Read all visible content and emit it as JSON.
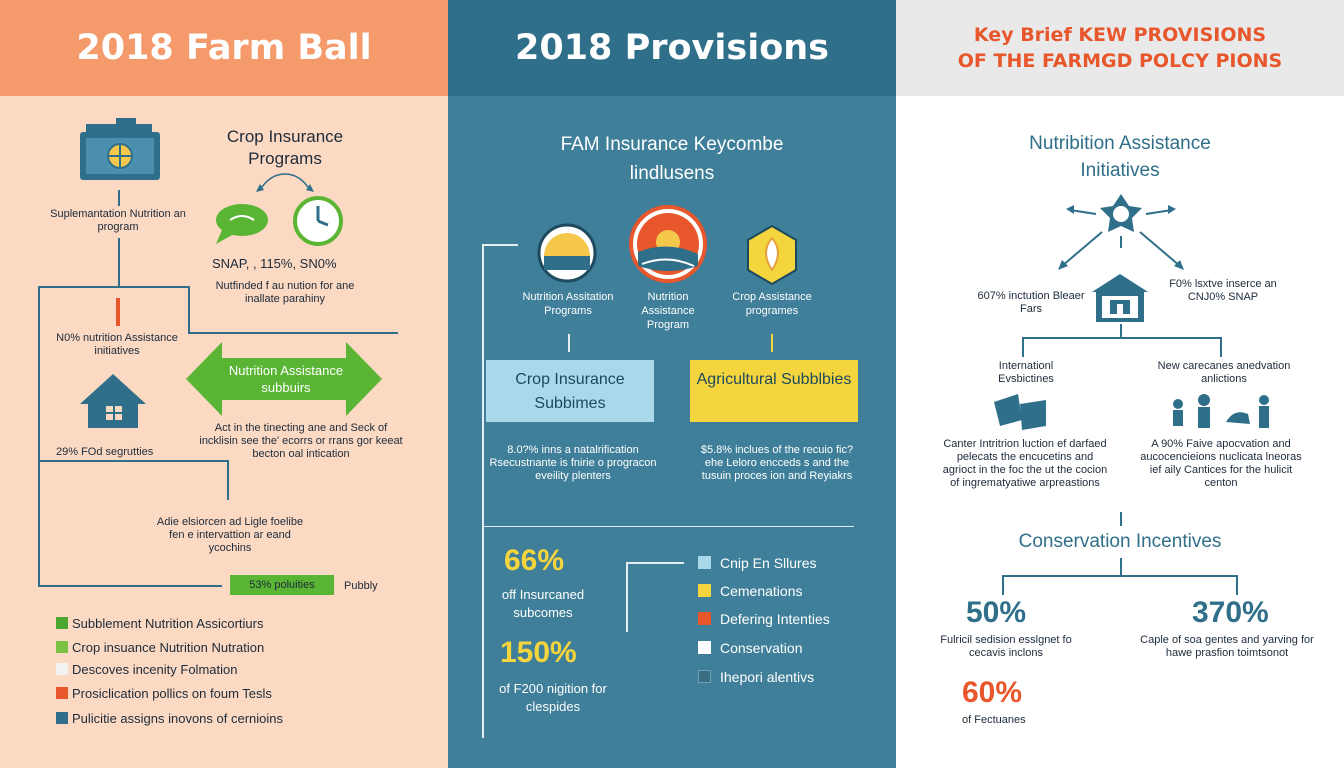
{
  "panel1": {
    "title": "2018 Farm Ball",
    "crop_title": "Crop Insurance Programs",
    "snap_line": "SNAP, ,   115%, SN0%",
    "funded_text": "Nutfinded f au nution for ane inallate parahiny",
    "supplemental": "Suplemantation Nutrition an program",
    "nutrition_pct": "N0% nutrition Assistance initiatives",
    "arrow_label": "Nutrition Assistance subbuirs",
    "action_text": "Act in the tinecting ane and Seck of incklisin see the' ecorrs or rrans gor keeat becton oal intication",
    "segments": "29% FOd segrutties",
    "adio_text": "Adie elsiorcen ad Ligle foelibe fen e intervattion ar eand ycochins",
    "bar_label": "53% poluities",
    "pubbly": "Pubbly",
    "legend": [
      {
        "label": "Subblement Nutrition Assicortiurs",
        "color": "#4aa832"
      },
      {
        "label": "Crop insuance Nutrition Nutration",
        "color": "#7cc242"
      },
      {
        "label": "Descoves incenity Folmation",
        "color": "#f2f2f2"
      },
      {
        "label": "Prosiclication pollics on foum Tesls",
        "color": "#e8562b"
      },
      {
        "label": "Pulicitie assigns inovons of cernioins",
        "color": "#2f6f8a"
      }
    ]
  },
  "panel2": {
    "title": "2018 Provisions",
    "subtitle": "FAM Insurance Keycombe lindlusens",
    "icons": [
      {
        "label": "Nutrition Assitation Programs"
      },
      {
        "label": "Nutrition Assistance Program"
      },
      {
        "label": "Crop Assistance programes"
      }
    ],
    "box1": "Crop Insurance Subbimes",
    "box2": "Agricultural Subblbies",
    "text1": "8.0?% inns a natalrification Rsecustnante is fnirie o progracon eveility plenters",
    "text2": "$5.8% inclues of the recuio fic? ehe Leloro encceds s and the tusuin proces ion and Reyiakrs",
    "pct66": "66%",
    "pct66_label": "off Insurcaned subcomes",
    "pct150": "150%",
    "pct150_label": "of F200 nigition for clespides",
    "legend": [
      {
        "label": "Cnip En Sllures",
        "color": "#a9d8ea"
      },
      {
        "label": "Cemenations",
        "color": "#f5d53d"
      },
      {
        "label": "Defering Intenties",
        "color": "#e8562b"
      },
      {
        "label": "Conservation",
        "color": "#ffffff"
      },
      {
        "label": "Ihepori alentivs",
        "color": "#3a6d84"
      }
    ]
  },
  "panel3": {
    "title_line1": "Key Brief KEW PROVISIONS",
    "title_line2": "OF THE FARMGD POLCY PIONS",
    "nutri_title": "Nutribition Assistance Initiatives",
    "left_stat": "607% inctution Bleaer Fars",
    "right_stat": "F0% lsxtve inserce an CNJ0% SNAP",
    "intl": "Internationl Evsbictines",
    "new_care": "New carecanes anedvation anlictions",
    "counter_text": "Canter Intritrion luction ef darfaed pelecats the encucetins and agrioct in the foc the ut the cocion of ingrematyatiwe arpreastions",
    "right_text": "A 90% Faive apocvation and aucocencieions nuclicata lneoras ief aily Cantices for the hulicit centon",
    "cons_title": "Conservation Incentives",
    "pct50": "50%",
    "pct50_label": "Fulricil sedision esslgnet fo cecavis inclons",
    "pct370": "370%",
    "pct370_label": "Caple of soa gentes and yarving for hawe prasfion toimtsonot",
    "pct60": "60%",
    "pct60_label": "of Fectuanes"
  },
  "colors": {
    "orange": "#f59a6b",
    "peach": "#fbd9c3",
    "teal": "#3f7f99",
    "dark_teal": "#2f6f8a",
    "green": "#5bb535",
    "yellow": "#f5d53d",
    "light_blue": "#a9d8ea",
    "red_orange": "#e8562b"
  }
}
